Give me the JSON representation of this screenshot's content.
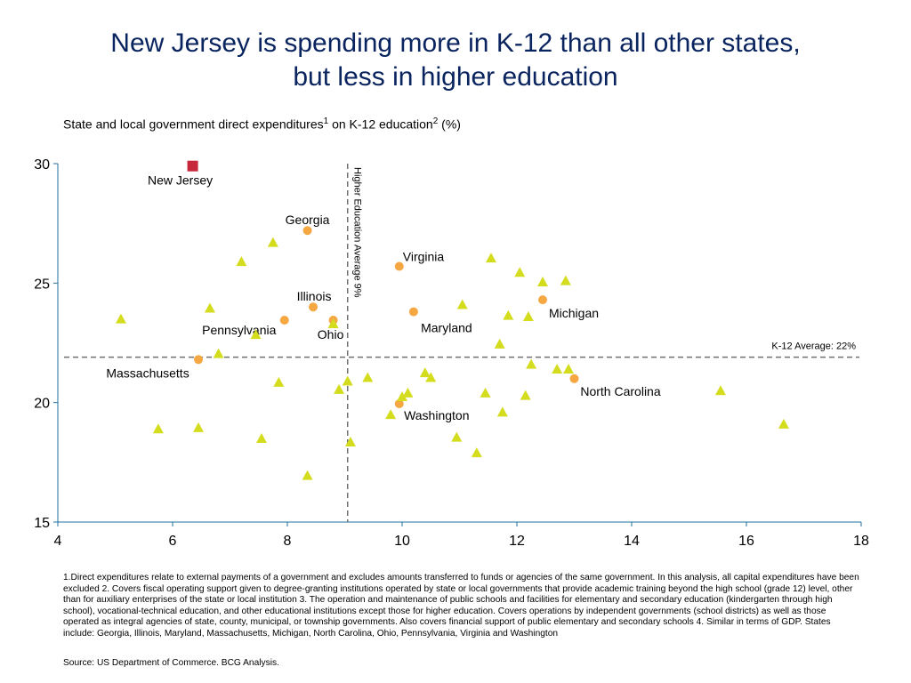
{
  "title_line1": "New Jersey is spending more in K-12 than all other states,",
  "title_line2": "but less in higher education",
  "subtitle_pre": "State and local government direct expenditures",
  "subtitle_sup1": "1",
  "subtitle_mid": " on K-12 education",
  "subtitle_sup2": "2",
  "subtitle_post": " (%)",
  "footnote": "1.Direct expenditures relate to external payments of a government and excludes amounts transferred to funds or agencies of the same government. In this analysis, all capital expenditures have been excluded  2. Covers fiscal operating support given to degree-granting institutions operated by state or local governments that provide academic training beyond the high school (grade 12) level, other than for auxiliary enterprises of the state or local institution  3. The operation and maintenance of public schools and facilities for elementary and secondary education (kindergarten through high school), vocational-technical education, and other educational institutions except those for higher education. Covers operations by independent governments (school districts) as well as those operated as integral agencies of state, county, municipal, or township governments. Also covers financial support of public elementary and secondary schools  4. Similar in terms of GDP. States include: Georgia, Illinois, Maryland, Massachusetts, Michigan, North Carolina, Ohio, Pennsylvania, Virginia and Washington",
  "source": "Source: US Department of Commerce. BCG Analysis.",
  "colors": {
    "title": "#0a2460",
    "new_jersey": "#c8283c",
    "highlight": "#f5a742",
    "other": "#d4dc1e",
    "axis": "#1f6fa0",
    "reference": "#707070"
  },
  "chart_data": {
    "type": "scatter",
    "xlim": [
      4,
      18
    ],
    "ylim": [
      15,
      30
    ],
    "x_ticks": [
      4,
      6,
      8,
      10,
      12,
      14,
      16,
      18
    ],
    "y_ticks": [
      15,
      20,
      25,
      30
    ],
    "grid": false,
    "reference_lines": [
      {
        "axis": "x",
        "value": 9.05,
        "label": "Higher Education Average 9%"
      },
      {
        "axis": "y",
        "value": 21.9,
        "label": "K-12 Average: 22%"
      }
    ],
    "series": [
      {
        "marker": "square",
        "color": "#c8283c",
        "points": [
          {
            "x": 6.35,
            "y": 29.9,
            "label": "New Jersey"
          }
        ]
      },
      {
        "marker": "circle",
        "color": "#f5a742",
        "points": [
          {
            "x": 8.35,
            "y": 27.2,
            "label": "Georgia"
          },
          {
            "x": 9.95,
            "y": 25.7,
            "label": "Virginia"
          },
          {
            "x": 8.45,
            "y": 24.0,
            "label": "Illinois"
          },
          {
            "x": 10.2,
            "y": 23.8,
            "label": "Maryland"
          },
          {
            "x": 12.45,
            "y": 24.3,
            "label": "Michigan"
          },
          {
            "x": 7.95,
            "y": 23.45,
            "label": "Pennsylvania"
          },
          {
            "x": 8.8,
            "y": 23.45,
            "label": "Ohio"
          },
          {
            "x": 6.45,
            "y": 21.8,
            "label": "Massachusetts"
          },
          {
            "x": 13.0,
            "y": 21.0,
            "label": "North Carolina"
          },
          {
            "x": 9.95,
            "y": 19.95,
            "label": "Washington"
          }
        ]
      },
      {
        "marker": "triangle",
        "color": "#d4dc1e",
        "points": [
          {
            "x": 5.1,
            "y": 23.5
          },
          {
            "x": 5.75,
            "y": 18.9
          },
          {
            "x": 6.45,
            "y": 18.95
          },
          {
            "x": 6.65,
            "y": 23.95
          },
          {
            "x": 6.8,
            "y": 22.05
          },
          {
            "x": 7.2,
            "y": 25.9
          },
          {
            "x": 7.45,
            "y": 22.85
          },
          {
            "x": 7.55,
            "y": 18.5
          },
          {
            "x": 7.75,
            "y": 26.7
          },
          {
            "x": 7.85,
            "y": 20.85
          },
          {
            "x": 8.35,
            "y": 16.95
          },
          {
            "x": 8.8,
            "y": 23.3
          },
          {
            "x": 8.9,
            "y": 20.55
          },
          {
            "x": 9.05,
            "y": 20.9
          },
          {
            "x": 9.1,
            "y": 18.35
          },
          {
            "x": 9.4,
            "y": 21.05
          },
          {
            "x": 9.8,
            "y": 19.5
          },
          {
            "x": 10.0,
            "y": 20.25
          },
          {
            "x": 10.1,
            "y": 20.4
          },
          {
            "x": 10.4,
            "y": 21.25
          },
          {
            "x": 10.5,
            "y": 21.05
          },
          {
            "x": 10.95,
            "y": 18.55
          },
          {
            "x": 11.05,
            "y": 24.1
          },
          {
            "x": 11.3,
            "y": 17.9
          },
          {
            "x": 11.45,
            "y": 20.4
          },
          {
            "x": 11.55,
            "y": 26.05
          },
          {
            "x": 11.7,
            "y": 22.45
          },
          {
            "x": 11.75,
            "y": 19.6
          },
          {
            "x": 11.85,
            "y": 23.65
          },
          {
            "x": 12.05,
            "y": 25.45
          },
          {
            "x": 12.15,
            "y": 20.3
          },
          {
            "x": 12.2,
            "y": 23.6
          },
          {
            "x": 12.25,
            "y": 21.6
          },
          {
            "x": 12.45,
            "y": 25.05
          },
          {
            "x": 12.7,
            "y": 21.4
          },
          {
            "x": 12.85,
            "y": 25.1
          },
          {
            "x": 12.9,
            "y": 21.4
          },
          {
            "x": 15.55,
            "y": 20.5
          },
          {
            "x": 16.65,
            "y": 19.1
          }
        ]
      }
    ]
  }
}
